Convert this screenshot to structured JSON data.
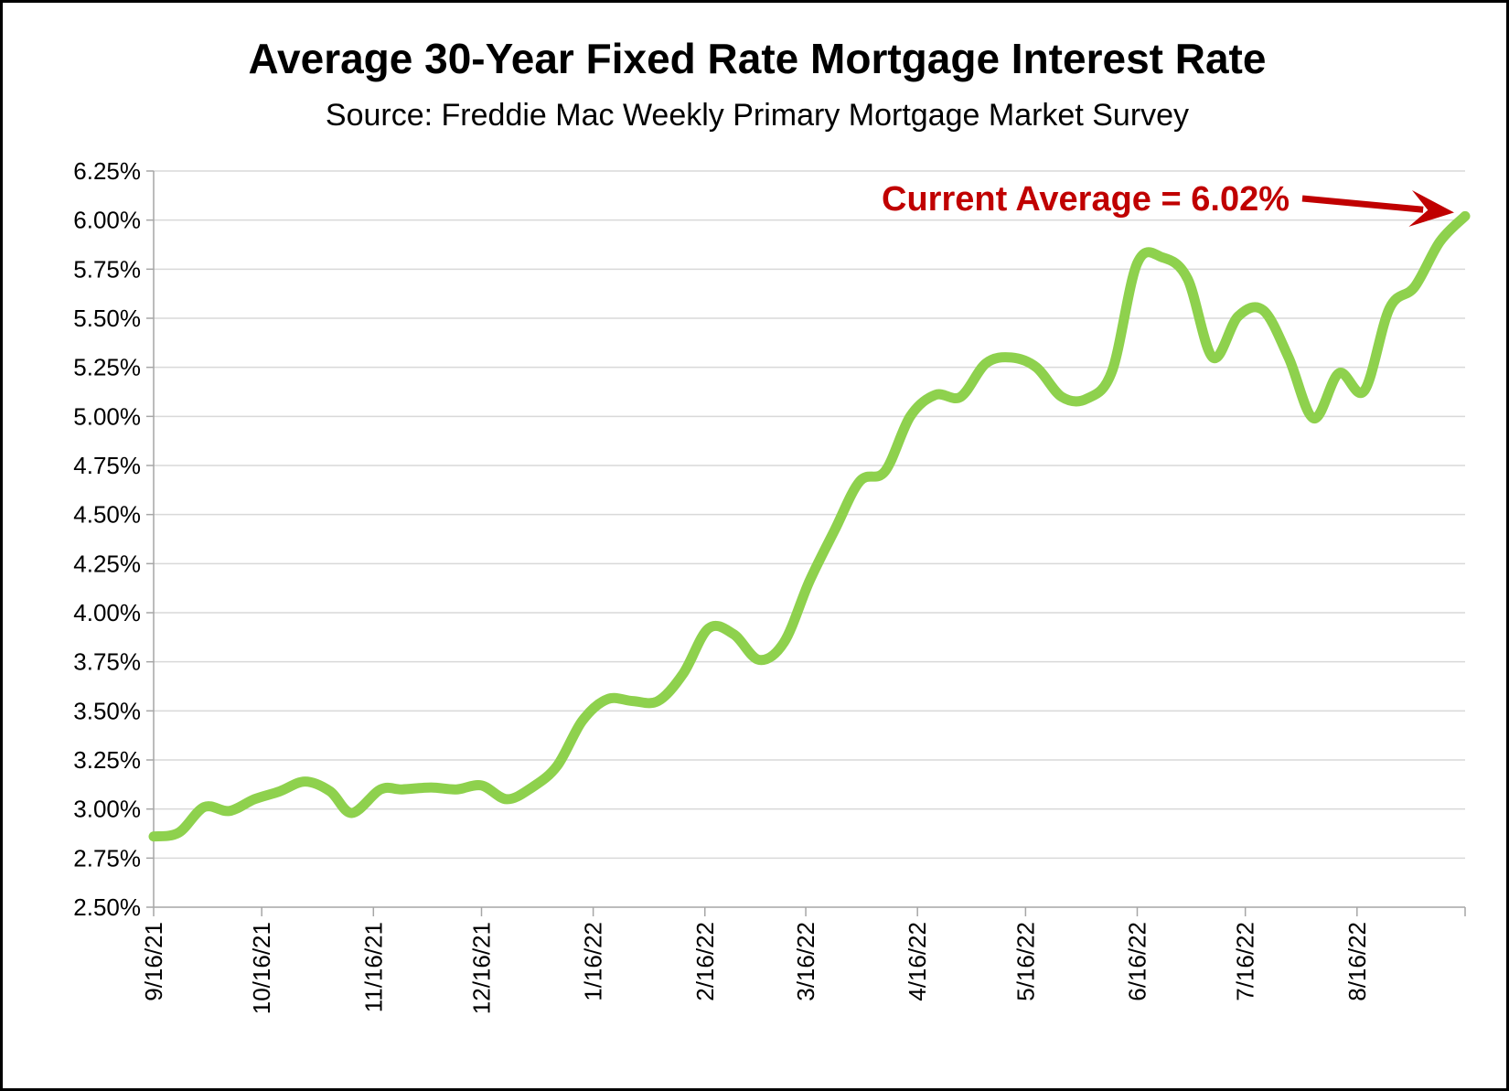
{
  "chart_data": {
    "type": "line",
    "title": "Average 30-Year Fixed Rate Mortgage Interest Rate",
    "subtitle": "Source: Freddie Mac Weekly Primary Mortgage Market Survey",
    "xlabel": "",
    "ylabel": "",
    "ylim": [
      2.5,
      6.25
    ],
    "yticks": [
      2.5,
      2.75,
      3.0,
      3.25,
      3.5,
      3.75,
      4.0,
      4.25,
      4.5,
      4.75,
      5.0,
      5.25,
      5.5,
      5.75,
      6.0,
      6.25
    ],
    "ytick_labels": [
      "2.50%",
      "2.75%",
      "3.00%",
      "3.25%",
      "3.50%",
      "3.75%",
      "4.00%",
      "4.25%",
      "4.50%",
      "4.75%",
      "5.00%",
      "5.25%",
      "5.50%",
      "5.75%",
      "6.00%",
      "6.25%"
    ],
    "xlim": [
      "2021-09-16",
      "2022-09-15"
    ],
    "xticks": [
      "2021-09-16",
      "2021-10-16",
      "2021-11-16",
      "2021-12-16",
      "2022-01-16",
      "2022-02-16",
      "2022-03-16",
      "2022-04-16",
      "2022-05-16",
      "2022-06-16",
      "2022-07-16",
      "2022-08-16"
    ],
    "xtick_labels": [
      "9/16/21",
      "10/16/21",
      "11/16/21",
      "12/16/21",
      "1/16/22",
      "2/16/22",
      "3/16/22",
      "4/16/22",
      "5/16/22",
      "6/16/22",
      "7/16/22",
      "8/16/22"
    ],
    "grid": true,
    "series": [
      {
        "color": "#8ed14d",
        "points": [
          [
            "2021-09-16",
            2.86
          ],
          [
            "2021-09-23",
            2.88
          ],
          [
            "2021-09-30",
            3.01
          ],
          [
            "2021-10-07",
            2.99
          ],
          [
            "2021-10-14",
            3.05
          ],
          [
            "2021-10-21",
            3.09
          ],
          [
            "2021-10-28",
            3.14
          ],
          [
            "2021-11-04",
            3.09
          ],
          [
            "2021-11-10",
            2.98
          ],
          [
            "2021-11-18",
            3.1
          ],
          [
            "2021-11-24",
            3.1
          ],
          [
            "2021-12-02",
            3.11
          ],
          [
            "2021-12-09",
            3.1
          ],
          [
            "2021-12-16",
            3.12
          ],
          [
            "2021-12-23",
            3.05
          ],
          [
            "2021-12-30",
            3.11
          ],
          [
            "2022-01-06",
            3.22
          ],
          [
            "2022-01-13",
            3.45
          ],
          [
            "2022-01-20",
            3.56
          ],
          [
            "2022-01-27",
            3.55
          ],
          [
            "2022-02-03",
            3.55
          ],
          [
            "2022-02-10",
            3.69
          ],
          [
            "2022-02-17",
            3.92
          ],
          [
            "2022-02-24",
            3.89
          ],
          [
            "2022-03-03",
            3.76
          ],
          [
            "2022-03-10",
            3.85
          ],
          [
            "2022-03-17",
            4.16
          ],
          [
            "2022-03-24",
            4.42
          ],
          [
            "2022-03-31",
            4.67
          ],
          [
            "2022-04-07",
            4.72
          ],
          [
            "2022-04-14",
            5.0
          ],
          [
            "2022-04-21",
            5.11
          ],
          [
            "2022-04-28",
            5.1
          ],
          [
            "2022-05-05",
            5.27
          ],
          [
            "2022-05-12",
            5.3
          ],
          [
            "2022-05-19",
            5.25
          ],
          [
            "2022-05-26",
            5.1
          ],
          [
            "2022-06-02",
            5.09
          ],
          [
            "2022-06-09",
            5.23
          ],
          [
            "2022-06-16",
            5.78
          ],
          [
            "2022-06-23",
            5.81
          ],
          [
            "2022-06-30",
            5.7
          ],
          [
            "2022-07-07",
            5.3
          ],
          [
            "2022-07-14",
            5.51
          ],
          [
            "2022-07-21",
            5.54
          ],
          [
            "2022-07-28",
            5.3
          ],
          [
            "2022-08-04",
            4.99
          ],
          [
            "2022-08-11",
            5.22
          ],
          [
            "2022-08-18",
            5.13
          ],
          [
            "2022-08-25",
            5.55
          ],
          [
            "2022-09-01",
            5.66
          ],
          [
            "2022-09-08",
            5.89
          ],
          [
            "2022-09-15",
            6.02
          ]
        ]
      }
    ],
    "annotation": {
      "text": "Current Average = 6.02%",
      "color": "#c00000",
      "points_to": [
        "2022-09-15",
        6.02
      ]
    }
  }
}
